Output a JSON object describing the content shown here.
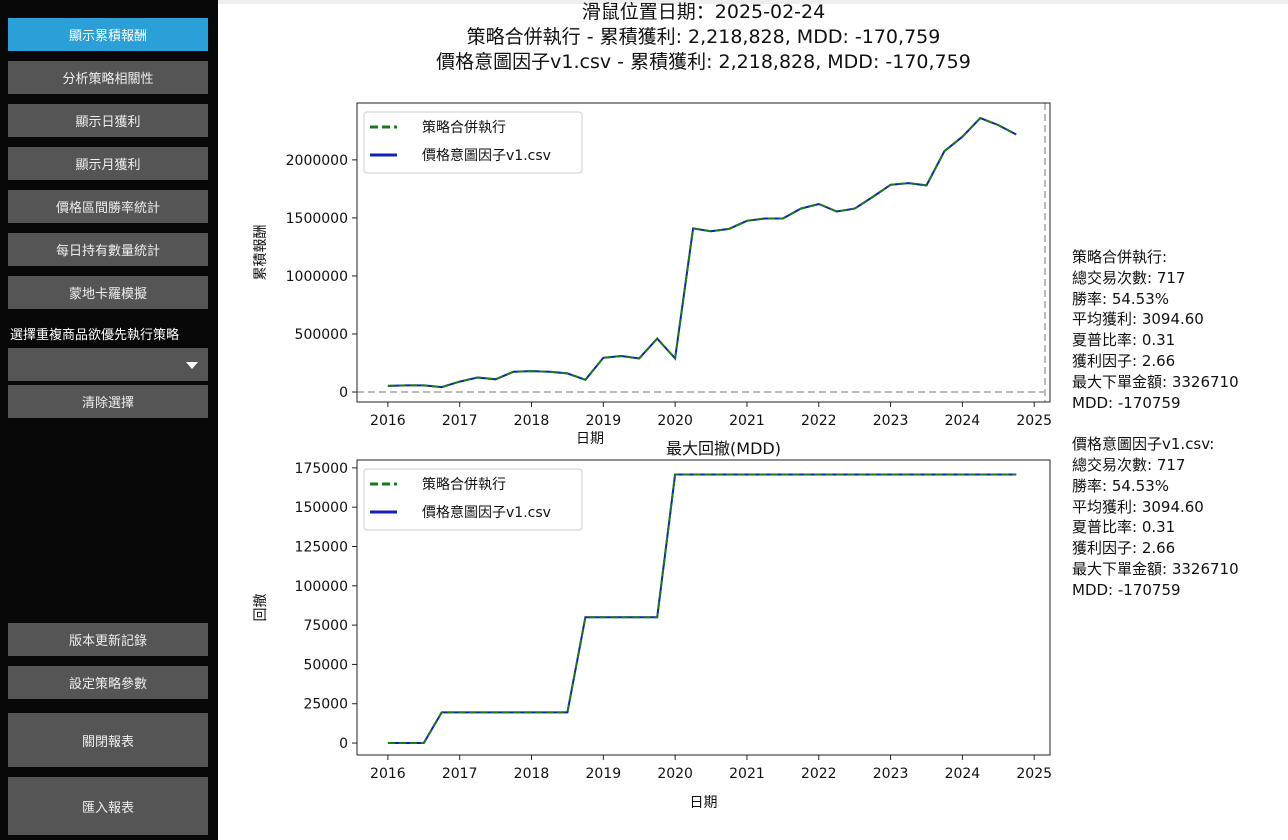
{
  "sidebar": {
    "buttons": [
      {
        "label": "顯示累積報酬",
        "active": true
      },
      {
        "label": "分析策略相關性"
      },
      {
        "label": "顯示日獲利"
      },
      {
        "label": "顯示月獲利"
      },
      {
        "label": "價格區間勝率統計"
      },
      {
        "label": "每日持有數量統計"
      },
      {
        "label": "蒙地卡羅模擬"
      }
    ],
    "dropdown_label": "選擇重複商品欲優先執行策略",
    "dropdown_value": "",
    "clear_label": "清除選擇",
    "bottom_buttons": [
      {
        "label": "版本更新記錄"
      },
      {
        "label": "設定策略參數"
      },
      {
        "label": "關閉報表"
      },
      {
        "label": "匯入報表"
      }
    ],
    "accent_color": "#2a9fd8"
  },
  "header": {
    "mouse_date": "滑鼠位置日期：2025-02-24",
    "line1": "策略合併執行 - 累積獲利: 2,218,828, MDD: -170,759",
    "line2": "價格意圖因子v1.csv - 累積獲利: 2,218,828, MDD: -170,759"
  },
  "stats": [
    {
      "name": "策略合併執行:",
      "lines": [
        "總交易次數: 717",
        "勝率: 54.53%",
        "平均獲利: 3094.60",
        "夏普比率: 0.31",
        "獲利因子: 2.66",
        "最大下單金額: 3326710",
        "MDD: -170759"
      ]
    },
    {
      "name": "價格意圖因子v1.csv:",
      "lines": [
        "總交易次數: 717",
        "勝率: 54.53%",
        "平均獲利: 3094.60",
        "夏普比率: 0.31",
        "獲利因子: 2.66",
        "最大下單金額: 3326710",
        "MDD: -170759"
      ]
    }
  ],
  "chart_data": [
    {
      "type": "line",
      "title": "",
      "xlabel": "日期",
      "ylabel": "累積報酬",
      "xlim": [
        2015.57,
        2025.22
      ],
      "ylim": [
        -86000,
        2490000
      ],
      "xticks": [
        "2016",
        "2017",
        "2018",
        "2019",
        "2020",
        "2021",
        "2022",
        "2023",
        "2024",
        "2025"
      ],
      "yticks": [
        0,
        500000,
        1000000,
        1500000,
        2000000
      ],
      "grid": false,
      "legend": "top-left",
      "cursor_x": 2025.15,
      "x": [
        2016.0,
        2016.25,
        2016.5,
        2016.75,
        2017.0,
        2017.25,
        2017.5,
        2017.75,
        2018.0,
        2018.25,
        2018.5,
        2018.75,
        2019.0,
        2019.25,
        2019.5,
        2019.75,
        2020.0,
        2020.25,
        2020.5,
        2020.75,
        2021.0,
        2021.25,
        2021.5,
        2021.75,
        2022.0,
        2022.25,
        2022.5,
        2022.75,
        2023.0,
        2023.25,
        2023.5,
        2023.75,
        2024.0,
        2024.25,
        2024.5,
        2024.75
      ],
      "series": [
        {
          "name": "策略合併執行",
          "color": "#1a7a1a",
          "style": "dashed",
          "values": [
            53000,
            57000,
            57000,
            42000,
            90000,
            125000,
            110000,
            175000,
            180000,
            175000,
            160000,
            105000,
            295000,
            310000,
            290000,
            460000,
            290000,
            1410000,
            1385000,
            1405000,
            1475000,
            1495000,
            1495000,
            1580000,
            1620000,
            1555000,
            1580000,
            1680000,
            1785000,
            1800000,
            1780000,
            2075000,
            2200000,
            2360000,
            2300000,
            2218828
          ]
        },
        {
          "name": "價格意圖因子v1.csv",
          "color": "#1020b8",
          "style": "solid",
          "values": [
            53000,
            57000,
            57000,
            42000,
            90000,
            125000,
            110000,
            175000,
            180000,
            175000,
            160000,
            105000,
            295000,
            310000,
            290000,
            460000,
            290000,
            1410000,
            1385000,
            1405000,
            1475000,
            1495000,
            1495000,
            1580000,
            1620000,
            1555000,
            1580000,
            1680000,
            1785000,
            1800000,
            1780000,
            2075000,
            2200000,
            2360000,
            2300000,
            2218828
          ]
        }
      ]
    },
    {
      "type": "line",
      "title": "最大回撤(MDD)",
      "xlabel": "日期",
      "ylabel": "回撤",
      "xlim": [
        2015.57,
        2025.22
      ],
      "ylim": [
        -7600,
        180000
      ],
      "xticks": [
        "2016",
        "2017",
        "2018",
        "2019",
        "2020",
        "2021",
        "2022",
        "2023",
        "2024",
        "2025"
      ],
      "yticks": [
        0,
        25000,
        50000,
        75000,
        100000,
        125000,
        150000,
        175000
      ],
      "grid": false,
      "legend": "top-left",
      "x": [
        2016.0,
        2016.25,
        2016.5,
        2016.75,
        2017.0,
        2017.25,
        2017.5,
        2017.75,
        2018.0,
        2018.25,
        2018.5,
        2018.75,
        2019.0,
        2019.25,
        2019.5,
        2019.75,
        2020.0,
        2020.25,
        2020.5,
        2020.75,
        2021.0,
        2021.25,
        2021.5,
        2021.75,
        2022.0,
        2022.25,
        2022.5,
        2022.75,
        2023.0,
        2023.25,
        2023.5,
        2023.75,
        2024.0,
        2024.25,
        2024.5,
        2024.75
      ],
      "series": [
        {
          "name": "策略合併執行",
          "color": "#1a7a1a",
          "style": "dashed",
          "values": [
            0,
            0,
            0,
            19500,
            19500,
            19500,
            19500,
            19500,
            19500,
            19500,
            19500,
            80000,
            80000,
            80000,
            80000,
            80000,
            170759,
            170759,
            170759,
            170759,
            170759,
            170759,
            170759,
            170759,
            170759,
            170759,
            170759,
            170759,
            170759,
            170759,
            170759,
            170759,
            170759,
            170759,
            170759,
            170759
          ]
        },
        {
          "name": "價格意圖因子v1.csv",
          "color": "#1020b8",
          "style": "solid",
          "values": [
            0,
            0,
            0,
            19500,
            19500,
            19500,
            19500,
            19500,
            19500,
            19500,
            19500,
            80000,
            80000,
            80000,
            80000,
            80000,
            170759,
            170759,
            170759,
            170759,
            170759,
            170759,
            170759,
            170759,
            170759,
            170759,
            170759,
            170759,
            170759,
            170759,
            170759,
            170759,
            170759,
            170759,
            170759,
            170759
          ]
        }
      ]
    }
  ]
}
